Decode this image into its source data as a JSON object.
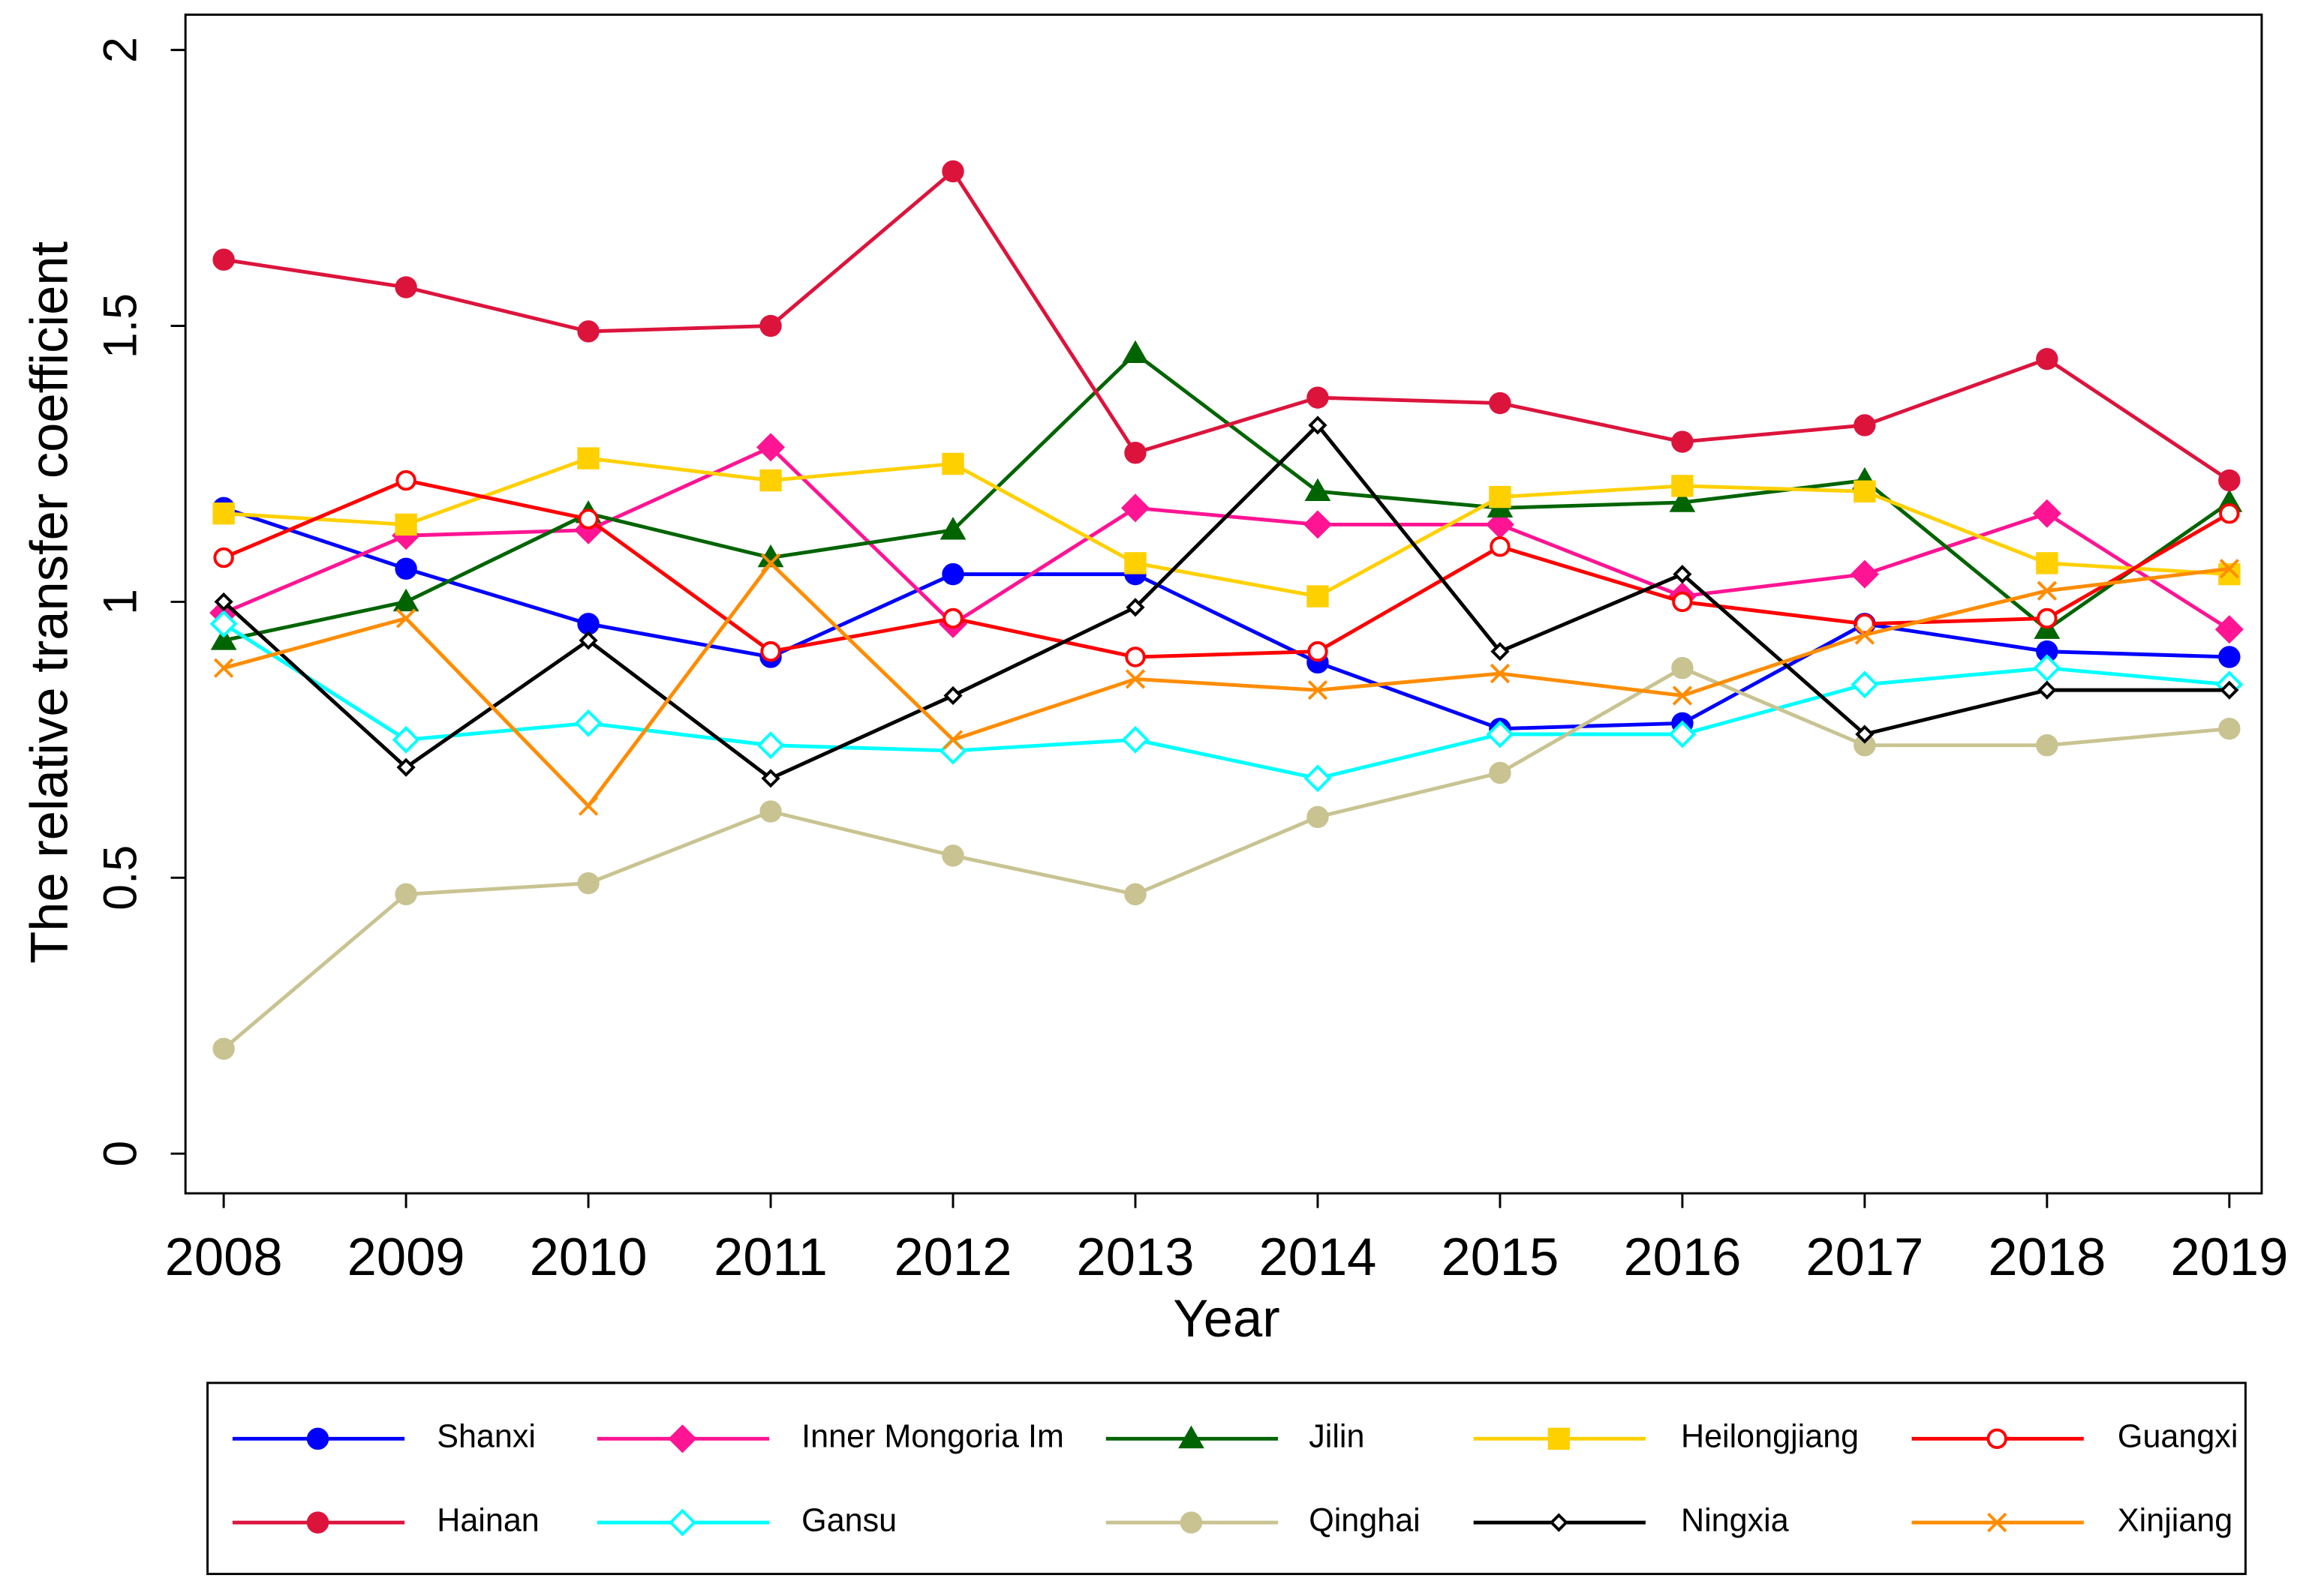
{
  "chart_data": {
    "type": "line",
    "x_label": "Year",
    "y_label": "The relative transfer coefficient",
    "categories": [
      "2008",
      "2009",
      "2010",
      "2011",
      "2012",
      "2013",
      "2014",
      "2015",
      "2016",
      "2017",
      "2018",
      "2019"
    ],
    "ylim": [
      0,
      2
    ],
    "yticks": [
      0,
      0.5,
      1,
      1.5,
      2
    ],
    "series": [
      {
        "name": "Shanxi",
        "color": "#0000ff",
        "marker": "circle",
        "values": [
          1.17,
          1.06,
          0.96,
          0.9,
          1.05,
          1.05,
          0.89,
          0.77,
          0.78,
          0.96,
          0.91,
          0.9
        ]
      },
      {
        "name": "Inner Mongoria Im",
        "color": "#ff1493",
        "marker": "diamond",
        "values": [
          0.98,
          1.12,
          1.13,
          1.28,
          0.96,
          1.17,
          1.14,
          1.14,
          1.01,
          1.05,
          1.16,
          0.95
        ]
      },
      {
        "name": "Jilin",
        "color": "#006400",
        "marker": "triangle",
        "values": [
          0.93,
          1.0,
          1.16,
          1.08,
          1.13,
          1.45,
          1.2,
          1.17,
          1.18,
          1.22,
          0.95,
          1.18
        ]
      },
      {
        "name": "Heilongjiang",
        "color": "#ffd000",
        "marker": "square",
        "values": [
          1.16,
          1.14,
          1.26,
          1.22,
          1.25,
          1.07,
          1.01,
          1.19,
          1.21,
          1.2,
          1.07,
          1.05
        ]
      },
      {
        "name": "Guangxi",
        "color": "#ff0000",
        "marker": "open-circle",
        "values": [
          1.08,
          1.22,
          1.15,
          0.91,
          0.97,
          0.9,
          0.91,
          1.1,
          1.0,
          0.96,
          0.97,
          1.16
        ]
      },
      {
        "name": "Hainan",
        "color": "#dc143c",
        "marker": "circle",
        "values": [
          1.62,
          1.57,
          1.49,
          1.5,
          1.78,
          1.27,
          1.37,
          1.36,
          1.29,
          1.32,
          1.44,
          1.22
        ]
      },
      {
        "name": "Gansu",
        "color": "#00ffff",
        "marker": "open-diamond",
        "values": [
          0.96,
          0.75,
          0.78,
          0.74,
          0.73,
          0.75,
          0.68,
          0.76,
          0.76,
          0.85,
          0.88,
          0.85
        ]
      },
      {
        "name": "Qinghai",
        "color": "#c8c391",
        "marker": "circle",
        "values": [
          0.19,
          0.47,
          0.49,
          0.62,
          0.54,
          0.47,
          0.61,
          0.69,
          0.88,
          0.74,
          0.74,
          0.77
        ]
      },
      {
        "name": "Ningxia",
        "color": "#000000",
        "marker": "small-open-diamond",
        "values": [
          1.0,
          0.7,
          0.93,
          0.68,
          0.83,
          0.99,
          1.32,
          0.91,
          1.05,
          0.76,
          0.84,
          0.84
        ]
      },
      {
        "name": "Xinjiang",
        "color": "#ff8c00",
        "marker": "x",
        "values": [
          0.88,
          0.97,
          0.63,
          1.07,
          0.75,
          0.86,
          0.84,
          0.87,
          0.83,
          0.94,
          1.02,
          1.06
        ]
      }
    ]
  }
}
